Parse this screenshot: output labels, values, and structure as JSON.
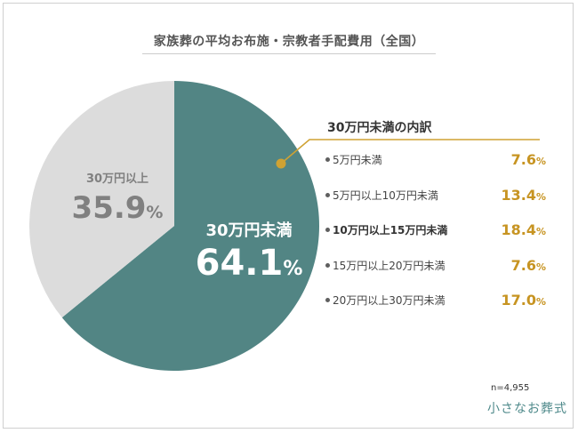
{
  "title": "家族葬の平均お布施・宗教者手配費用（全国）",
  "colors": {
    "under_30": "#528584",
    "over_30": "#dcdcdc",
    "accent": "#c79422",
    "callout_line": "#cfa233"
  },
  "chart_data": {
    "type": "pie",
    "title": "家族葬の平均お布施・宗教者手配費用（全国）",
    "slices": [
      {
        "label": "30万円未満",
        "value": 64.1,
        "display": "64.1",
        "unit": "%"
      },
      {
        "label": "30万円以上",
        "value": 35.9,
        "display": "35.9",
        "unit": "%"
      }
    ],
    "breakdown": {
      "title": "30万円未満の内訳",
      "items": [
        {
          "label": "5万円未満",
          "value": 7.6,
          "display": "7.6",
          "unit": "%",
          "bold": false
        },
        {
          "label": "5万円以上10万円未満",
          "value": 13.4,
          "display": "13.4",
          "unit": "%",
          "bold": false
        },
        {
          "label": "10万円以上15万円未満",
          "value": 18.4,
          "display": "18.4",
          "unit": "%",
          "bold": true
        },
        {
          "label": "15万円以上20万円未満",
          "value": 7.6,
          "display": "7.6",
          "unit": "%",
          "bold": false
        },
        {
          "label": "20万円以上30万円未満",
          "value": 17.0,
          "display": "17.0",
          "unit": "%",
          "bold": false
        }
      ]
    },
    "sample_size": "n=4,955"
  },
  "logo_text": "小さなお葬式"
}
